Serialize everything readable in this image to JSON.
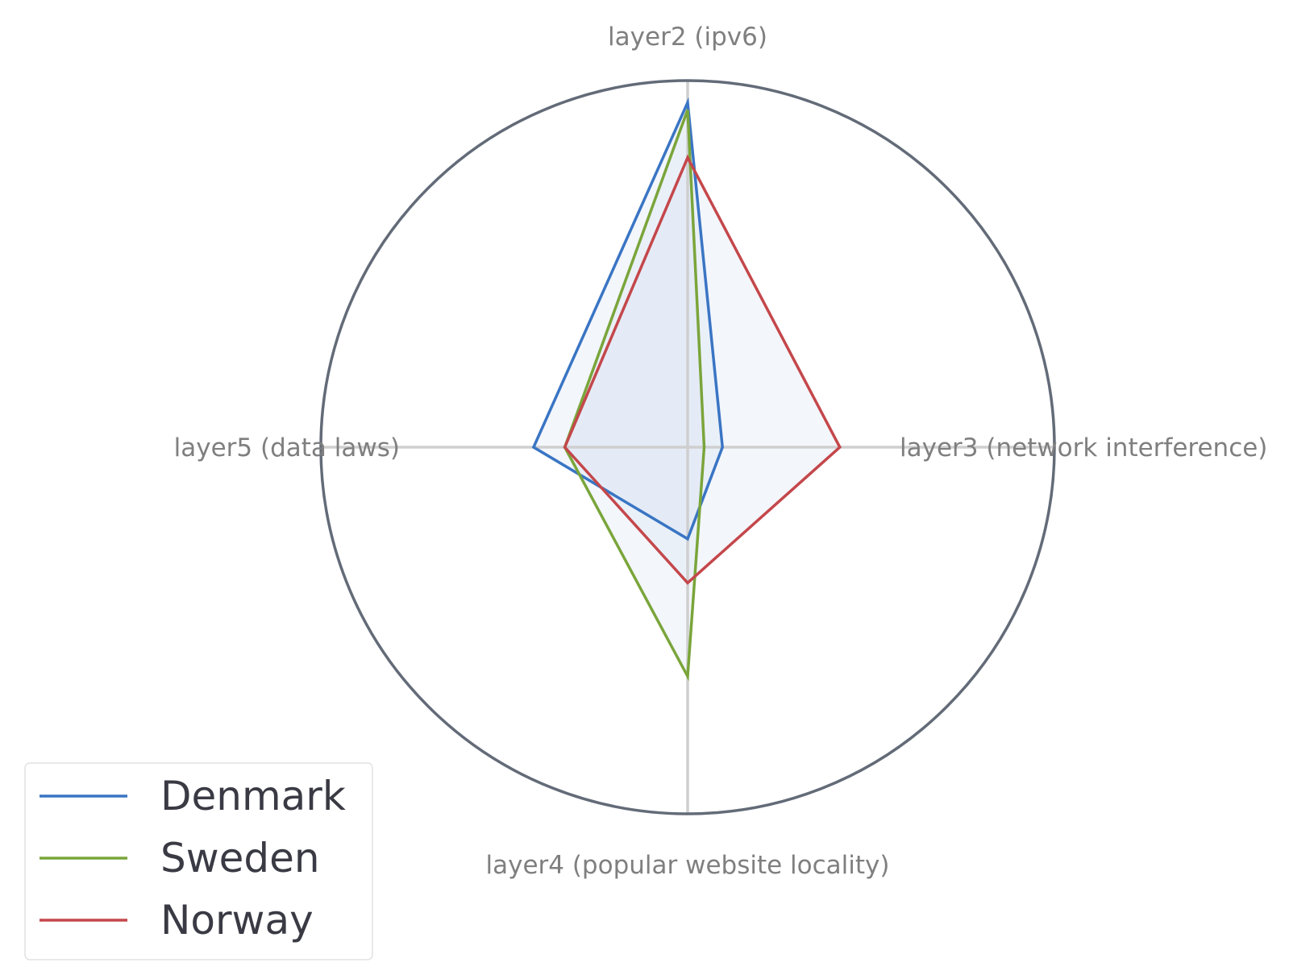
{
  "chart_data": {
    "type": "radar",
    "axes": [
      "layer2 (ipv6)",
      "layer3 (network interference)",
      "layer4 (popular website locality)",
      "layer5 (data laws)"
    ],
    "range": [
      0,
      1
    ],
    "series": [
      {
        "name": "Denmark",
        "color": "#3a75c4",
        "values": [
          0.94,
          0.095,
          0.25,
          0.42
        ]
      },
      {
        "name": "Sweden",
        "color": "#7aa53b",
        "values": [
          0.92,
          0.045,
          0.625,
          0.335
        ]
      },
      {
        "name": "Norway",
        "color": "#c4474b",
        "values": [
          0.79,
          0.415,
          0.37,
          0.335
        ]
      }
    ],
    "fill_color": "#d6e1f1",
    "legend_position": "lower-left",
    "grid": true
  }
}
